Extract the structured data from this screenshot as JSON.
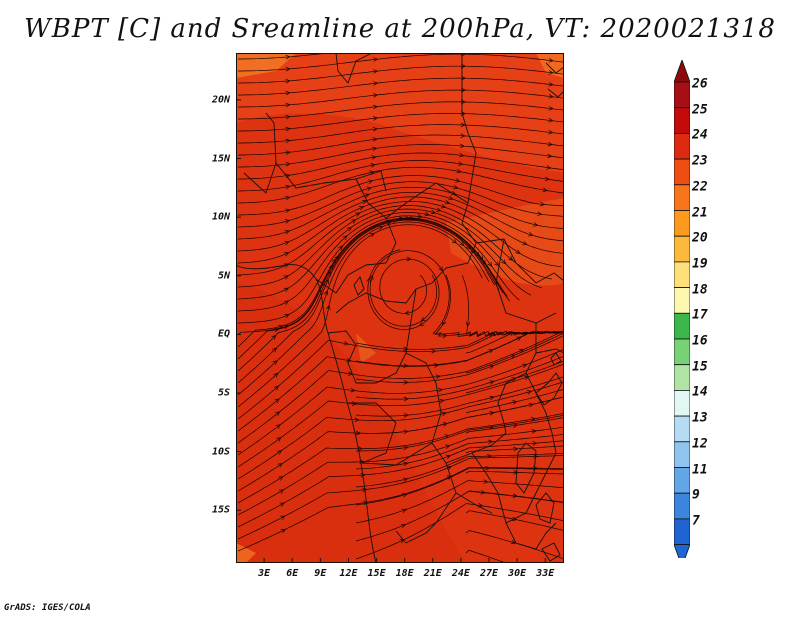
{
  "title": "WBPT [C] and Sreamline at 200hPa, VT: 2020021318",
  "credit": "GrADS: IGES/COLA",
  "map": {
    "region": "Central and southern Africa",
    "projection": "latlon",
    "lon_range": [
      0,
      35
    ],
    "lat_range": [
      -19.5,
      24
    ],
    "fill_color": "#dd3311",
    "lat_ticks": [
      {
        "value": 20,
        "label": "20N"
      },
      {
        "value": 15,
        "label": "15N"
      },
      {
        "value": 10,
        "label": "10N"
      },
      {
        "value": 5,
        "label": "5N"
      },
      {
        "value": 0,
        "label": "EQ"
      },
      {
        "value": -5,
        "label": "5S"
      },
      {
        "value": -10,
        "label": "10S"
      },
      {
        "value": -15,
        "label": "15S"
      }
    ],
    "lon_ticks": [
      {
        "value": 3,
        "label": "3E"
      },
      {
        "value": 6,
        "label": "6E"
      },
      {
        "value": 9,
        "label": "9E"
      },
      {
        "value": 12,
        "label": "12E"
      },
      {
        "value": 15,
        "label": "15E"
      },
      {
        "value": 18,
        "label": "18E"
      },
      {
        "value": 21,
        "label": "21E"
      },
      {
        "value": 24,
        "label": "24E"
      },
      {
        "value": 27,
        "label": "27E"
      },
      {
        "value": 30,
        "label": "30E"
      },
      {
        "value": 33,
        "label": "33E"
      }
    ],
    "streamlines": "westerly flow in the north, anticyclonic circulation centered near 5N 17E, southwesterly curving flow in the south"
  },
  "colorbar": {
    "levels": [
      {
        "label": "26",
        "color": "#a50f15"
      },
      {
        "label": "25",
        "color": "#c40a0a"
      },
      {
        "label": "24",
        "color": "#dd2a10"
      },
      {
        "label": "23",
        "color": "#ee4e12"
      },
      {
        "label": "22",
        "color": "#f8751c"
      },
      {
        "label": "21",
        "color": "#fb9a1e"
      },
      {
        "label": "20",
        "color": "#fcb93c"
      },
      {
        "label": "19",
        "color": "#fde07a"
      },
      {
        "label": "18",
        "color": "#fdf6b0"
      },
      {
        "label": "17",
        "color": "#3cb84a"
      },
      {
        "label": "16",
        "color": "#78d275"
      },
      {
        "label": "15",
        "color": "#b0e4a4"
      },
      {
        "label": "14",
        "color": "#e2f6f4"
      },
      {
        "label": "13",
        "color": "#b6dcf4"
      },
      {
        "label": "12",
        "color": "#8ec4ee"
      },
      {
        "label": "11",
        "color": "#62a6e8"
      },
      {
        "label": "9",
        "color": "#3d84dc"
      },
      {
        "label": "7",
        "color": "#1f64d0"
      }
    ],
    "top_arrow_color": "#8e0a0a",
    "bottom_arrow_color": "#1f64d0"
  }
}
